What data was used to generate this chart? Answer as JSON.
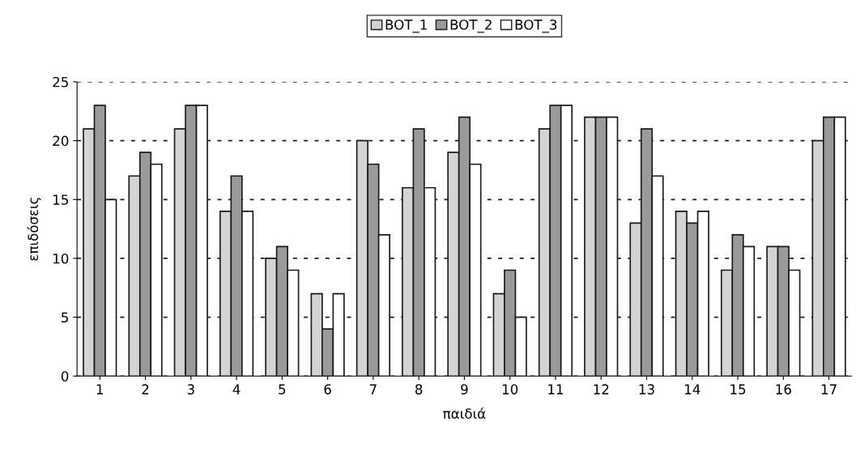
{
  "chart_data": {
    "type": "bar",
    "xlabel": "παιδιά",
    "ylabel": "επιδόσεις",
    "categories": [
      "1",
      "2",
      "3",
      "4",
      "5",
      "6",
      "7",
      "8",
      "9",
      "10",
      "11",
      "12",
      "13",
      "14",
      "15",
      "16",
      "17"
    ],
    "series": [
      {
        "name": "BOT_1",
        "color": "#d4d4d4",
        "values": [
          21,
          17,
          21,
          14,
          10,
          7,
          20,
          16,
          19,
          7,
          21,
          22,
          13,
          14,
          9,
          11,
          20
        ]
      },
      {
        "name": "BOT_2",
        "color": "#9a9a9a",
        "values": [
          23,
          19,
          23,
          17,
          11,
          4,
          18,
          21,
          22,
          9,
          23,
          22,
          21,
          13,
          12,
          11,
          22
        ]
      },
      {
        "name": "BOT_3",
        "color": "#ffffff",
        "values": [
          15,
          18,
          23,
          14,
          9,
          7,
          12,
          16,
          18,
          5,
          23,
          22,
          17,
          14,
          11,
          9,
          22
        ]
      }
    ],
    "ylim": [
      0,
      25
    ],
    "yticks": [
      0,
      5,
      10,
      15,
      20,
      25
    ],
    "grid": "y",
    "legend": "top"
  }
}
